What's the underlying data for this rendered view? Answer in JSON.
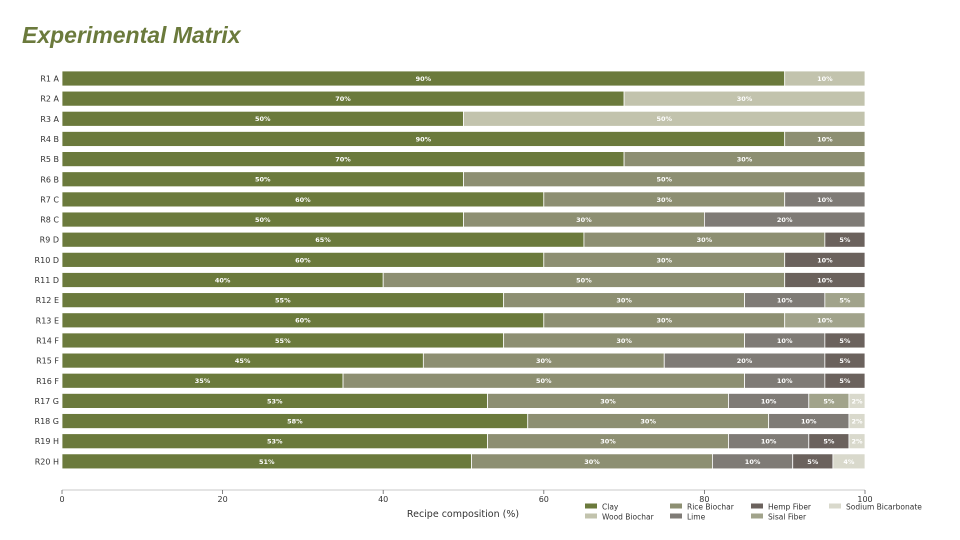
{
  "title": "Experimental Matrix",
  "chart_data": {
    "type": "bar",
    "orientation": "horizontal-stacked",
    "xlabel": "Recipe composition (%)",
    "xlim": [
      0,
      100
    ],
    "xticks": [
      "0",
      "20",
      "40",
      "60",
      "80",
      "100"
    ],
    "tick_values": [
      0,
      20,
      40,
      60,
      80,
      100
    ],
    "components": [
      {
        "name": "Clay",
        "color": "#6b7a3c"
      },
      {
        "name": "Wood Biochar",
        "color": "#c2c3ad"
      },
      {
        "name": "Rice Biochar",
        "color": "#8d8f72"
      },
      {
        "name": "Lime",
        "color": "#7f7b76"
      },
      {
        "name": "Hemp Fiber",
        "color": "#6b625d"
      },
      {
        "name": "Sisal Fiber",
        "color": "#a1a38b"
      },
      {
        "name": "Sodium Bicarbonate",
        "color": "#d9d9cc"
      }
    ],
    "rows": [
      {
        "label": "R1  A",
        "segments": [
          {
            "c": "Clay",
            "v": 90,
            "t": "90%"
          },
          {
            "c": "Wood Biochar",
            "v": 10,
            "t": "10%"
          }
        ]
      },
      {
        "label": "R2  A",
        "segments": [
          {
            "c": "Clay",
            "v": 70,
            "t": "70%"
          },
          {
            "c": "Wood Biochar",
            "v": 30,
            "t": "30%"
          }
        ]
      },
      {
        "label": "R3  A",
        "segments": [
          {
            "c": "Clay",
            "v": 50,
            "t": "50%"
          },
          {
            "c": "Wood Biochar",
            "v": 50,
            "t": "50%"
          }
        ]
      },
      {
        "label": "R4  B",
        "segments": [
          {
            "c": "Clay",
            "v": 90,
            "t": "90%"
          },
          {
            "c": "Rice Biochar",
            "v": 10,
            "t": "10%"
          }
        ]
      },
      {
        "label": "R5  B",
        "segments": [
          {
            "c": "Clay",
            "v": 70,
            "t": "70%"
          },
          {
            "c": "Rice Biochar",
            "v": 30,
            "t": "30%"
          }
        ]
      },
      {
        "label": "R6  B",
        "segments": [
          {
            "c": "Clay",
            "v": 50,
            "t": "50%"
          },
          {
            "c": "Rice Biochar",
            "v": 50,
            "t": "50%"
          }
        ]
      },
      {
        "label": "R7  C",
        "segments": [
          {
            "c": "Clay",
            "v": 60,
            "t": "60%"
          },
          {
            "c": "Rice Biochar",
            "v": 30,
            "t": "30%"
          },
          {
            "c": "Lime",
            "v": 10,
            "t": "10%"
          }
        ]
      },
      {
        "label": "R8  C",
        "segments": [
          {
            "c": "Clay",
            "v": 50,
            "t": "50%"
          },
          {
            "c": "Rice Biochar",
            "v": 30,
            "t": "30%"
          },
          {
            "c": "Lime",
            "v": 20,
            "t": "20%"
          }
        ]
      },
      {
        "label": "R9  D",
        "segments": [
          {
            "c": "Clay",
            "v": 65,
            "t": "65%"
          },
          {
            "c": "Rice Biochar",
            "v": 30,
            "t": "30%"
          },
          {
            "c": "Hemp Fiber",
            "v": 5,
            "t": "5%"
          }
        ]
      },
      {
        "label": "R10  D",
        "segments": [
          {
            "c": "Clay",
            "v": 60,
            "t": "60%"
          },
          {
            "c": "Rice Biochar",
            "v": 30,
            "t": "30%"
          },
          {
            "c": "Hemp Fiber",
            "v": 10,
            "t": "10%"
          }
        ]
      },
      {
        "label": "R11  D",
        "segments": [
          {
            "c": "Clay",
            "v": 40,
            "t": "40%"
          },
          {
            "c": "Rice Biochar",
            "v": 50,
            "t": "50%"
          },
          {
            "c": "Hemp Fiber",
            "v": 10,
            "t": "10%"
          }
        ]
      },
      {
        "label": "R12  E",
        "segments": [
          {
            "c": "Clay",
            "v": 55,
            "t": "55%"
          },
          {
            "c": "Rice Biochar",
            "v": 30,
            "t": "30%"
          },
          {
            "c": "Lime",
            "v": 10,
            "t": "10%"
          },
          {
            "c": "Sisal Fiber",
            "v": 5,
            "t": "5%"
          }
        ]
      },
      {
        "label": "R13  E",
        "segments": [
          {
            "c": "Clay",
            "v": 60,
            "t": "60%"
          },
          {
            "c": "Rice Biochar",
            "v": 30,
            "t": "30%"
          },
          {
            "c": "Sisal Fiber",
            "v": 10,
            "t": "10%"
          }
        ]
      },
      {
        "label": "R14  F",
        "segments": [
          {
            "c": "Clay",
            "v": 55,
            "t": "55%"
          },
          {
            "c": "Rice Biochar",
            "v": 30,
            "t": "30%"
          },
          {
            "c": "Lime",
            "v": 10,
            "t": "10%"
          },
          {
            "c": "Hemp Fiber",
            "v": 5,
            "t": "5%"
          }
        ]
      },
      {
        "label": "R15  F",
        "segments": [
          {
            "c": "Clay",
            "v": 45,
            "t": "45%"
          },
          {
            "c": "Rice Biochar",
            "v": 30,
            "t": "30%"
          },
          {
            "c": "Lime",
            "v": 20,
            "t": "20%"
          },
          {
            "c": "Hemp Fiber",
            "v": 5,
            "t": "5%"
          }
        ]
      },
      {
        "label": "R16  F",
        "segments": [
          {
            "c": "Clay",
            "v": 35,
            "t": "35%"
          },
          {
            "c": "Rice Biochar",
            "v": 50,
            "t": "50%"
          },
          {
            "c": "Lime",
            "v": 10,
            "t": "10%"
          },
          {
            "c": "Hemp Fiber",
            "v": 5,
            "t": "5%"
          }
        ]
      },
      {
        "label": "R17  G",
        "segments": [
          {
            "c": "Clay",
            "v": 53,
            "t": "53%"
          },
          {
            "c": "Rice Biochar",
            "v": 30,
            "t": "30%"
          },
          {
            "c": "Lime",
            "v": 10,
            "t": "10%"
          },
          {
            "c": "Sisal Fiber",
            "v": 5,
            "t": "5%"
          },
          {
            "c": "Sodium Bicarbonate",
            "v": 2,
            "t": "2%"
          }
        ]
      },
      {
        "label": "R18  G",
        "segments": [
          {
            "c": "Clay",
            "v": 58,
            "t": "58%"
          },
          {
            "c": "Rice Biochar",
            "v": 30,
            "t": "30%"
          },
          {
            "c": "Lime",
            "v": 10,
            "t": "10%"
          },
          {
            "c": "Sodium Bicarbonate",
            "v": 2,
            "t": "2%"
          }
        ]
      },
      {
        "label": "R19  H",
        "segments": [
          {
            "c": "Clay",
            "v": 53,
            "t": "53%"
          },
          {
            "c": "Rice Biochar",
            "v": 30,
            "t": "30%"
          },
          {
            "c": "Lime",
            "v": 10,
            "t": "10%"
          },
          {
            "c": "Hemp Fiber",
            "v": 5,
            "t": "5%"
          },
          {
            "c": "Sodium Bicarbonate",
            "v": 2,
            "t": "2%"
          }
        ]
      },
      {
        "label": "R20  H",
        "segments": [
          {
            "c": "Clay",
            "v": 51,
            "t": "51%"
          },
          {
            "c": "Rice Biochar",
            "v": 30,
            "t": "30%"
          },
          {
            "c": "Lime",
            "v": 10,
            "t": "10%"
          },
          {
            "c": "Hemp Fiber",
            "v": 5,
            "t": "5%"
          },
          {
            "c": "Sodium Bicarbonate",
            "v": 4,
            "t": "4%"
          }
        ]
      }
    ],
    "legend": [
      [
        "Clay",
        "Rice Biochar",
        "Hemp Fiber",
        "Sodium Bicarbonate"
      ],
      [
        "Wood Biochar",
        "Lime",
        "Sisal Fiber"
      ]
    ]
  }
}
